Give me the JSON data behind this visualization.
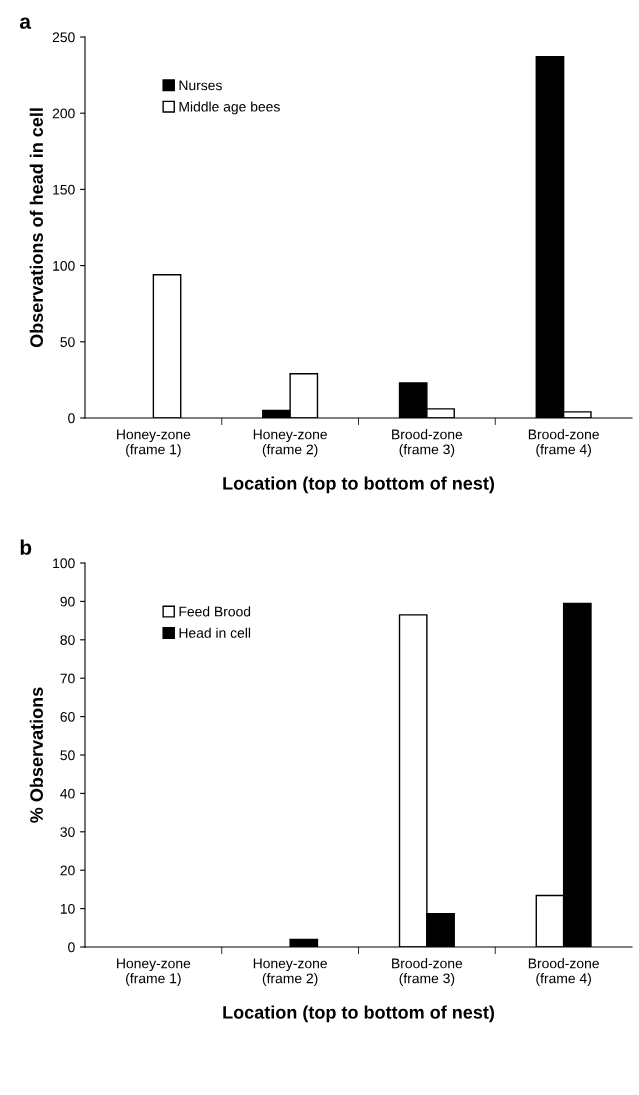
{
  "chart_data": [
    {
      "type": "bar",
      "title": "a",
      "xlabel": "Location (top to bottom of nest)",
      "ylabel": "Observations of head in cell",
      "categories": [
        "Honey-zone\n(frame 1)",
        "Honey-zone\n(frame 2)",
        "Brood-zone\n(frame 3)",
        "Brood-zone\n(frame 4)"
      ],
      "series": [
        {
          "name": "Nurses",
          "color": "#000000",
          "values": [
            0,
            5,
            23,
            237
          ]
        },
        {
          "name": "Middle age bees",
          "color": "#ffffff",
          "values": [
            94,
            29,
            6,
            4
          ]
        }
      ],
      "ylim": [
        0,
        250
      ],
      "yticks": [
        0,
        50,
        100,
        150,
        200,
        250
      ],
      "legend": "top left",
      "grid": false
    },
    {
      "type": "bar",
      "title": "b",
      "xlabel": "Location (top to bottom of nest)",
      "ylabel": "% Observations",
      "categories": [
        "Honey-zone\n(frame 1)",
        "Honey-zone\n(frame 2)",
        "Brood-zone\n(frame 3)",
        "Brood-zone\n(frame 4)"
      ],
      "series": [
        {
          "name": "Feed Brood",
          "color": "#ffffff",
          "values": [
            0,
            0,
            86.5,
            13.4
          ]
        },
        {
          "name": "Head in cell",
          "color": "#000000",
          "values": [
            0,
            2,
            8.7,
            89.5
          ]
        }
      ],
      "ylim": [
        0,
        100
      ],
      "yticks": [
        0,
        10,
        20,
        30,
        40,
        50,
        60,
        70,
        80,
        90,
        100
      ],
      "legend": "top left",
      "grid": false
    }
  ]
}
